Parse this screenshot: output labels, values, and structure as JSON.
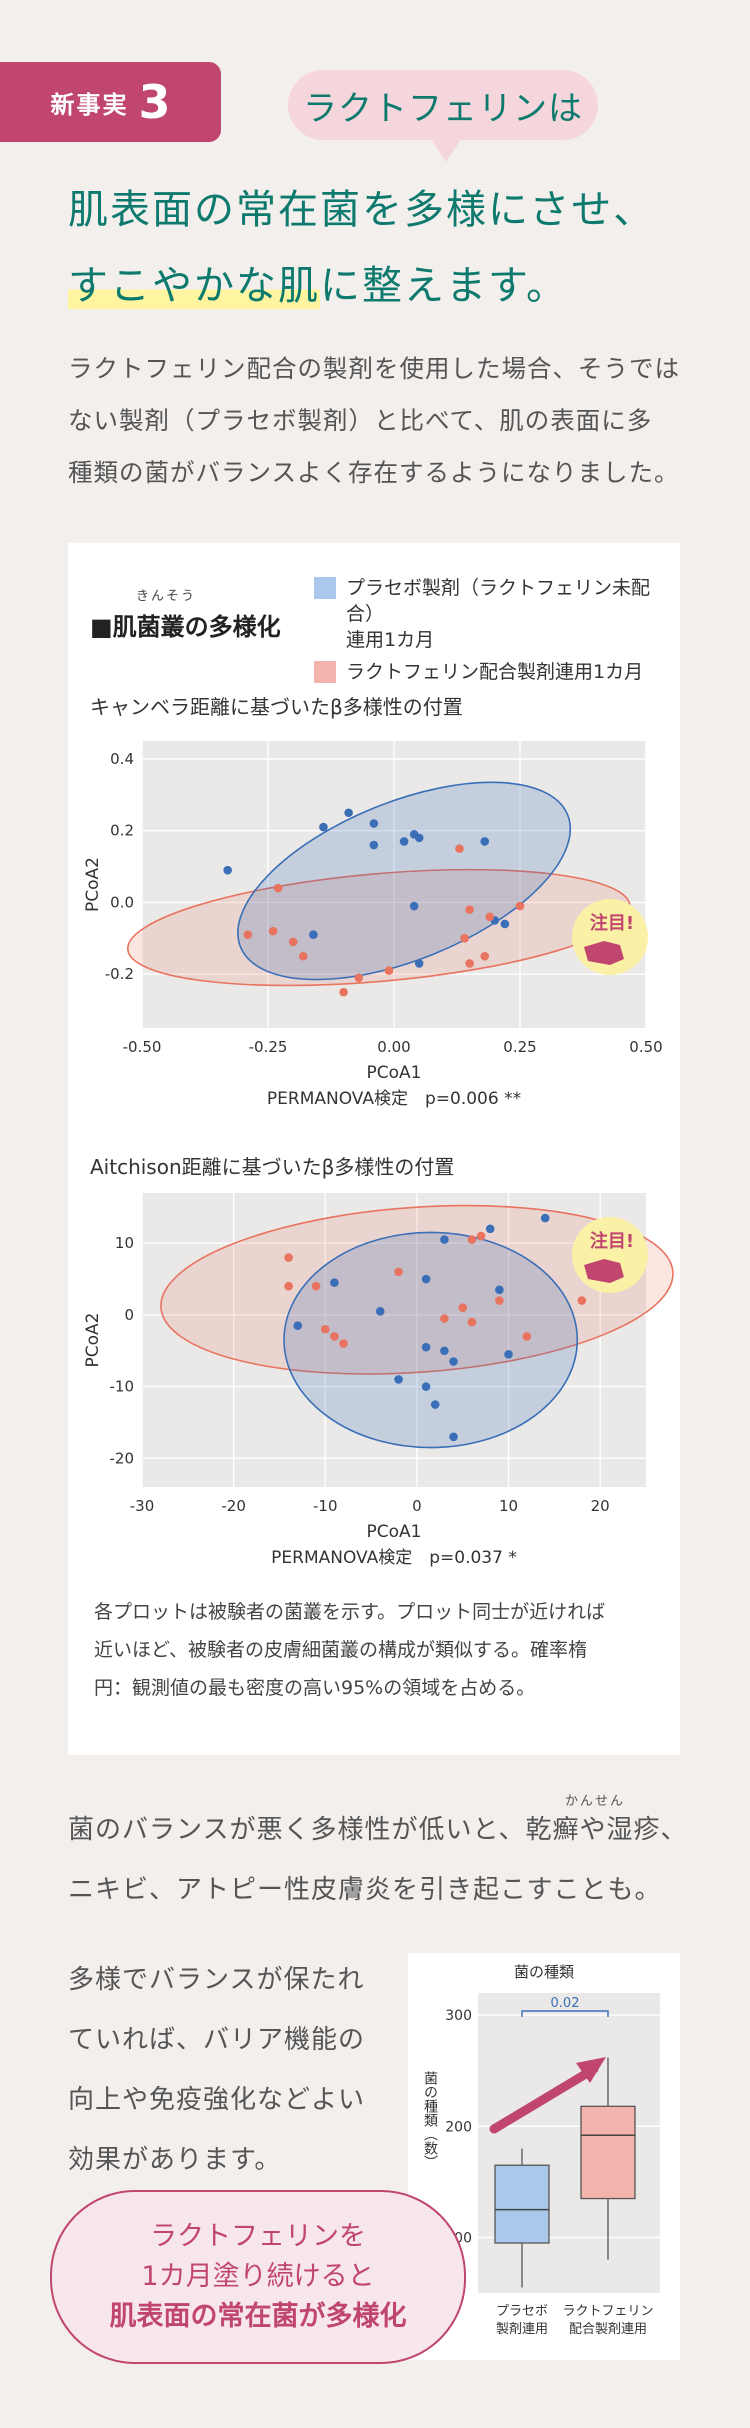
{
  "header": {
    "tag_text": "新事実",
    "tag_number": "3",
    "bubble": "ラクトフェリンは",
    "headline_line1": "肌表面の常在菌を多様にさせ、",
    "headline_line2_hl": "すこやかな肌",
    "headline_line2_rest": "に整えます。"
  },
  "intro": {
    "line1": "ラクトフェリン配合の製剤を使用した場合、そうでは",
    "line2": "ない製剤（プラセボ製剤）と比べて、肌の表面に多",
    "line3": "種類の菌がバランスよく存在するようになりました。"
  },
  "card": {
    "title": "■肌菌叢の多様化",
    "title_ruby": "きんそう",
    "legend_placebo_l1": "プラセボ製剤（ラクトフェリン未配合）",
    "legend_placebo_l2": "連用1カ月",
    "legend_lf": "ラクトフェリン配合製剤連用1カ月",
    "callout": "注目!",
    "note_l1": "各プロットは被験者の菌叢を示す。プロット同士が近ければ",
    "note_l2": "近いほど、被験者の皮膚細菌叢の構成が類似する。確率楕",
    "note_l3": "円：観測値の最も密度の高い95%の領域を占める。"
  },
  "colors": {
    "placebo": "#3a6fb8",
    "lf": "#e8735f",
    "accent": "#c0466f",
    "teal": "#0e7a6e"
  },
  "chart_data": [
    {
      "type": "scatter",
      "title": "キャンベラ距離に基づいたβ多様性の付置",
      "xlabel": "PCoA1",
      "ylabel": "PCoA2",
      "test_label": "PERMANOVA検定　p=0.006 **",
      "xlim": [
        -0.5,
        0.5
      ],
      "ylim": [
        -0.35,
        0.45
      ],
      "xticks": [
        "-0.50",
        "-0.25",
        "0.00",
        "0.25",
        "0.50"
      ],
      "yticks": [
        "0.4",
        "0.2",
        "0.0",
        "-0.2"
      ],
      "grid": true,
      "series": [
        {
          "name": "プラセボ製剤（ラクトフェリン未配合） 連用1カ月",
          "x": [
            -0.33,
            -0.14,
            -0.09,
            -0.04,
            -0.04,
            0.02,
            0.04,
            0.05,
            0.18,
            0.04,
            0.2,
            0.22,
            0.05,
            -0.16
          ],
          "y": [
            0.09,
            0.21,
            0.25,
            0.22,
            0.16,
            0.17,
            0.19,
            0.18,
            0.17,
            -0.01,
            -0.05,
            -0.06,
            -0.17,
            -0.09
          ]
        },
        {
          "name": "ラクトフェリン配合製剤連用1カ月",
          "x": [
            -0.29,
            -0.24,
            -0.23,
            -0.2,
            -0.18,
            -0.1,
            -0.07,
            -0.01,
            0.13,
            0.15,
            0.14,
            0.15,
            0.19,
            0.25,
            0.18
          ],
          "y": [
            -0.09,
            -0.08,
            0.04,
            -0.11,
            -0.15,
            -0.25,
            -0.21,
            -0.19,
            0.15,
            -0.02,
            -0.1,
            -0.17,
            -0.04,
            -0.01,
            -0.15
          ]
        }
      ],
      "ellipses": [
        {
          "series": 0,
          "cx": 0.02,
          "cy": 0.06,
          "rx": 0.35,
          "ry": 0.22,
          "angle": -22
        },
        {
          "series": 1,
          "cx": -0.03,
          "cy": -0.07,
          "rx": 0.5,
          "ry": 0.15,
          "angle": -5
        }
      ]
    },
    {
      "type": "scatter",
      "title": "Aitchison距離に基づいたβ多様性の付置",
      "xlabel": "PCoA1",
      "ylabel": "PCoA2",
      "test_label": "PERMANOVA検定　p=0.037 *",
      "xlim": [
        -30,
        25
      ],
      "ylim": [
        -24,
        17
      ],
      "xticks": [
        "-30",
        "-20",
        "-10",
        "0",
        "10",
        "20"
      ],
      "yticks": [
        "10",
        "0",
        "-10",
        "-20"
      ],
      "grid": true,
      "series": [
        {
          "name": "プラセボ製剤（ラクトフェリン未配合） 連用1カ月",
          "x": [
            -13,
            -9,
            -4,
            1,
            3,
            8,
            14,
            9,
            10,
            -2,
            1,
            3,
            4,
            1,
            2,
            4
          ],
          "y": [
            -1.5,
            4.5,
            0.5,
            5,
            10.5,
            12,
            13.5,
            3.5,
            -5.5,
            -9,
            -4.5,
            -5,
            -6.5,
            -10,
            -12.5,
            -17
          ]
        },
        {
          "name": "ラクトフェリン配合製剤連用1カ月",
          "x": [
            -14,
            -14,
            -11,
            -10,
            -9,
            -8,
            -2,
            5,
            6,
            7,
            9,
            12,
            18,
            3,
            6
          ],
          "y": [
            8,
            4,
            4,
            -2,
            -3,
            -4,
            6,
            1,
            10.5,
            11,
            2,
            -3,
            2,
            -0.5,
            -1
          ]
        }
      ],
      "ellipses": [
        {
          "series": 0,
          "cx": 1.5,
          "cy": -3.5,
          "rx": 16,
          "ry": 15,
          "angle": 0
        },
        {
          "series": 1,
          "cx": 0,
          "cy": 3.5,
          "rx": 28,
          "ry": 11.5,
          "angle": -4
        }
      ]
    },
    {
      "type": "box",
      "title": "菌の種類",
      "ylabel": "菌の種類（数）",
      "categories": [
        "プラセボ\n製剤連用",
        "ラクトフェリン\n配合製剤連用"
      ],
      "ylim": [
        50,
        320
      ],
      "yticks": [
        "300",
        "200",
        "100"
      ],
      "boxes": [
        {
          "min": 55,
          "q1": 95,
          "median": 125,
          "q3": 165,
          "max": 180
        },
        {
          "min": 80,
          "q1": 135,
          "median": 192,
          "q3": 218,
          "max": 262
        }
      ],
      "significance": "0.02"
    }
  ],
  "para1": {
    "line1": "菌のバランスが悪く多様性が低いと、乾癬や湿疹、",
    "line2": "ニキビ、アトピー性皮膚炎を引き起こすことも。",
    "ruby": "かんせん"
  },
  "para2": {
    "line1": "多様でバランスが保たれ",
    "line2": "ていれば、バリア機能の",
    "line3": "向上や免疫強化などよい",
    "line4": "効果があります。"
  },
  "speech": {
    "line1": "ラクトフェリンを",
    "line2": "1カ月塗り続けると",
    "line3": "肌表面の常在菌が多様化"
  }
}
